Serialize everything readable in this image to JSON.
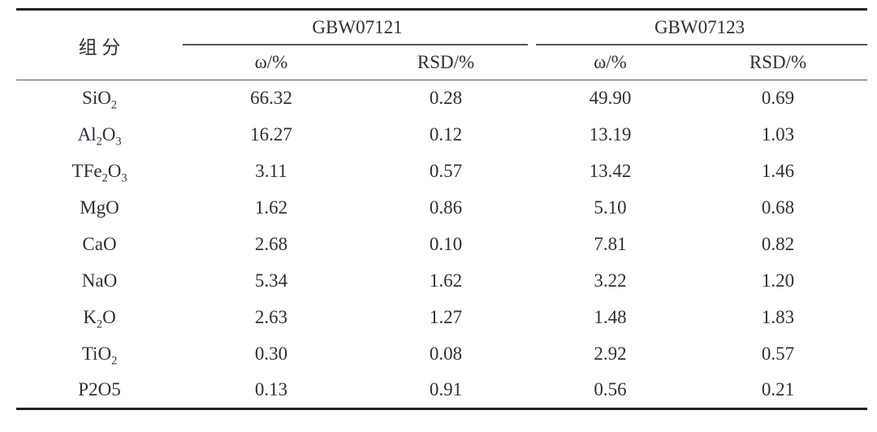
{
  "table": {
    "component_header": "组分",
    "groups": [
      {
        "label": "GBW07121",
        "subheaders": [
          "ω/%",
          "RSD/%"
        ]
      },
      {
        "label": "GBW07123",
        "subheaders": [
          "ω/%",
          "RSD/%"
        ]
      }
    ],
    "rows": [
      {
        "component": "SiO_2",
        "values": [
          "66.32",
          "0.28",
          "49.90",
          "0.69"
        ]
      },
      {
        "component": "Al_2O_3",
        "values": [
          "16.27",
          "0.12",
          "13.19",
          "1.03"
        ]
      },
      {
        "component": "TFe_2O_3",
        "values": [
          "3.11",
          "0.57",
          "13.42",
          "1.46"
        ]
      },
      {
        "component": "MgO",
        "values": [
          "1.62",
          "0.86",
          "5.10",
          "0.68"
        ]
      },
      {
        "component": "CaO",
        "values": [
          "2.68",
          "0.10",
          "7.81",
          "0.82"
        ]
      },
      {
        "component": "NaO",
        "values": [
          "5.34",
          "1.62",
          "3.22",
          "1.20"
        ]
      },
      {
        "component": "K_2O",
        "values": [
          "2.63",
          "1.27",
          "1.48",
          "1.83"
        ]
      },
      {
        "component": "TiO_2",
        "values": [
          "0.30",
          "0.08",
          "2.92",
          "0.57"
        ]
      },
      {
        "component": "P2O5",
        "values": [
          "0.13",
          "0.91",
          "0.56",
          "0.21"
        ]
      }
    ]
  },
  "colors": {
    "text": "#2f2f3a",
    "rule_thick": "#1f1f24",
    "rule_thin": "#55555c",
    "background": "#ffffff"
  }
}
